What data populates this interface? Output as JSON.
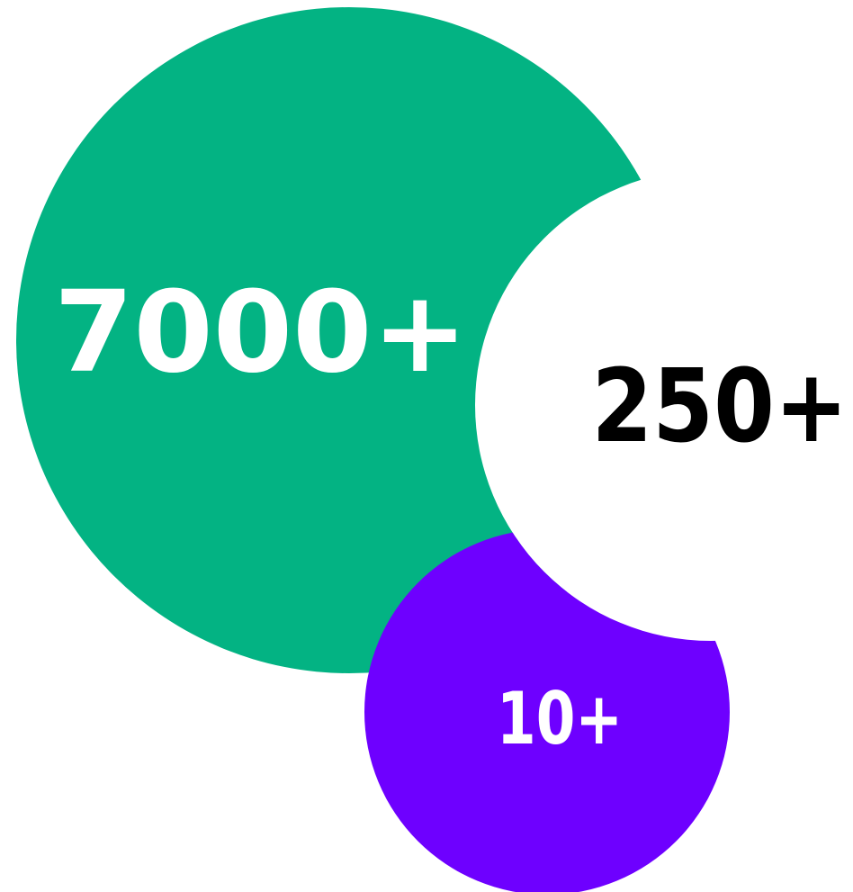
{
  "colors": {
    "background": "#ffffff",
    "green": "#03b383",
    "purple": "#6e00ff",
    "white_text": "#ffffff",
    "black_text": "#000000"
  },
  "stats": {
    "large": "7000+",
    "medium": "250+",
    "small": "10+"
  }
}
